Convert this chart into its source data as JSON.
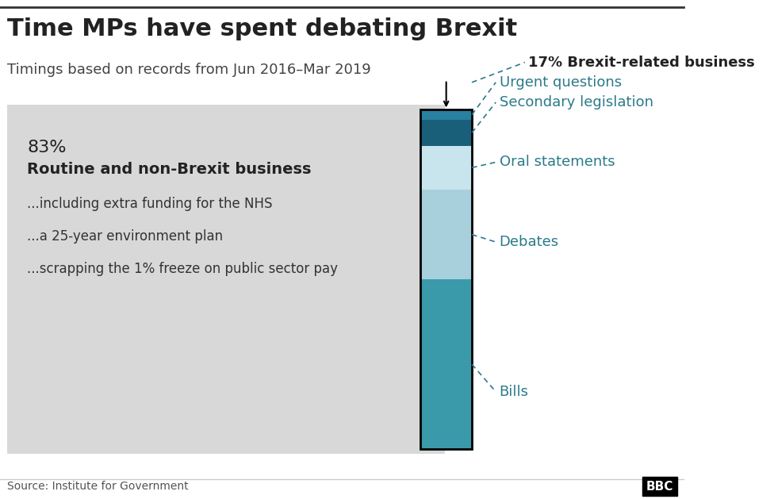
{
  "title": "Time MPs have spent debating Brexit",
  "subtitle": "Timings based on records from Jun 2016–Mar 2019",
  "source": "Source: Institute for Government",
  "bbc_label": "BBC",
  "bar_segments": [
    {
      "label": "Bills",
      "value": 0.085,
      "color": "#3a9aaa"
    },
    {
      "label": "Debates",
      "value": 0.045,
      "color": "#a8d0dc"
    },
    {
      "label": "Oral statements",
      "value": 0.022,
      "color": "#c8e4ec"
    },
    {
      "label": "Secondary legislation",
      "value": 0.013,
      "color": "#1a5f7a"
    },
    {
      "label": "Urgent questions",
      "value": 0.005,
      "color": "#2980a0"
    }
  ],
  "non_brexit_pct": "83%",
  "non_brexit_label": "Routine and non-Brexit business",
  "non_brexit_bullets": [
    "...including extra funding for the NHS",
    "...a 25-year environment plan",
    "...scrapping the 1% freeze on public sector pay"
  ],
  "brexit_pct_label": "17% Brexit-related business",
  "annotation_color": "#2a7a8a",
  "dashed_line_color": "#2a7a8a",
  "title_fontsize": 22,
  "subtitle_fontsize": 13,
  "label_fontsize": 13,
  "text_color": "#222222",
  "grey_bg_color": "#d8d8d8"
}
